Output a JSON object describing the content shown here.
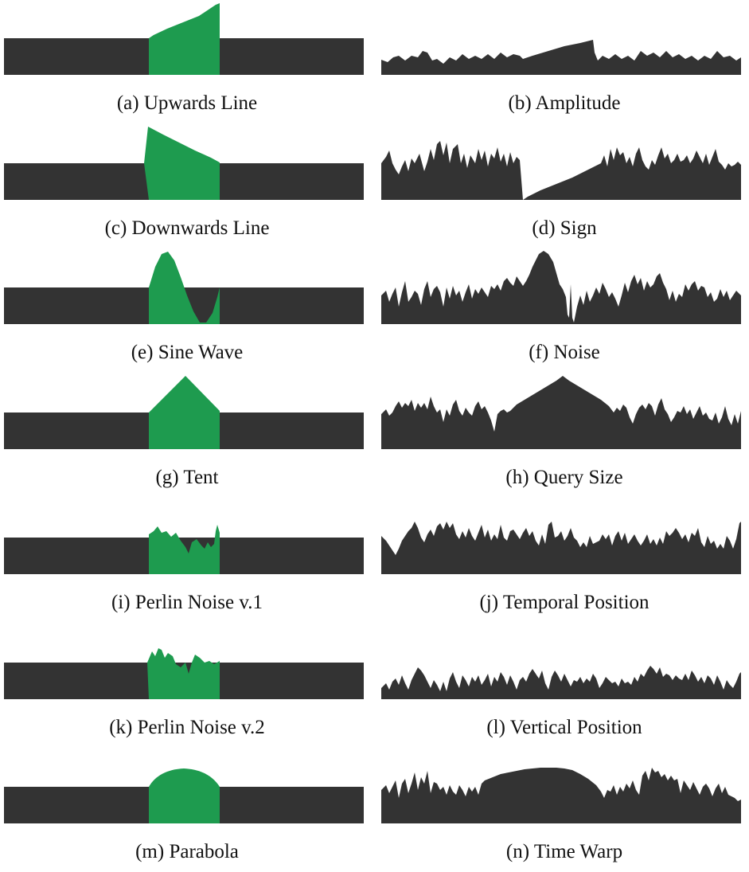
{
  "colors": {
    "dark": "#333333",
    "green": "#1e9b4f",
    "background": "#ffffff"
  },
  "left_panels": [
    {
      "label": "(a) Upwards Line"
    },
    {
      "label": "(c) Downwards Line"
    },
    {
      "label": "(e) Sine Wave"
    },
    {
      "label": "(g) Tent"
    },
    {
      "label": "(i) Perlin Noise v.1"
    },
    {
      "label": "(k) Perlin Noise v.2"
    },
    {
      "label": "(m) Parabola"
    }
  ],
  "right_panels": [
    {
      "label": "(b) Amplitude"
    },
    {
      "label": "(d) Sign"
    },
    {
      "label": "(f) Noise"
    },
    {
      "label": "(h) Query Size"
    },
    {
      "label": "(j) Temporal Position"
    },
    {
      "label": "(l) Vertical Position"
    },
    {
      "label": "(n) Time Warp"
    }
  ]
}
